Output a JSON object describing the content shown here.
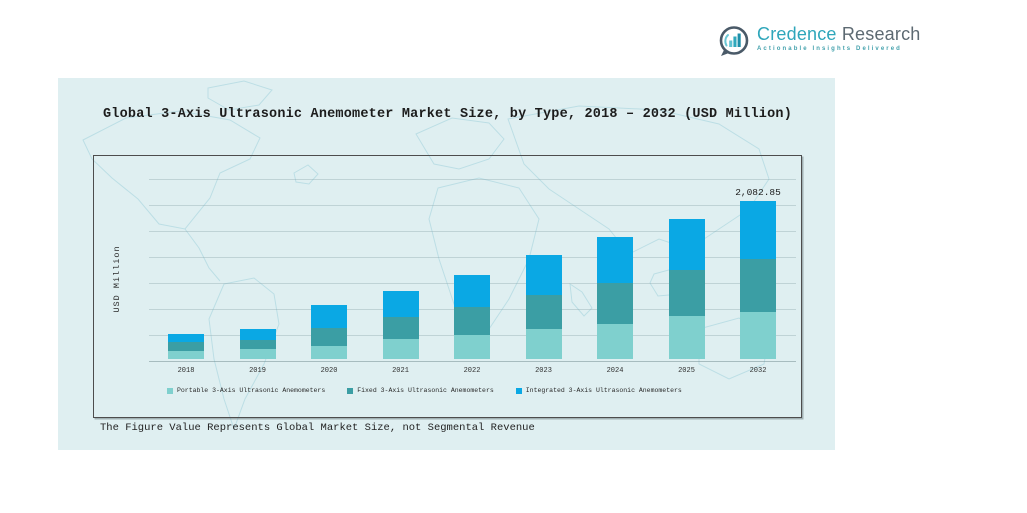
{
  "logo": {
    "brand_primary": "Credence",
    "brand_secondary": "Research",
    "tagline": "Actionable Insights Delivered",
    "icon": "bar-chart-bubble-icon",
    "colors": {
      "primary": "#2ea6ba",
      "secondary": "#5d6a72"
    }
  },
  "card": {
    "background": "#dfeff1",
    "footnote": "The Figure Value Represents Global Market Size, not Segmental Revenue"
  },
  "chart_data": {
    "type": "bar",
    "stacked": true,
    "title": "Global 3-Axis Ultrasonic Anemometer Market Size, by Type, 2018 – 2032 (USD Million)",
    "xlabel": "",
    "ylabel": "USD Million",
    "categories": [
      "2018",
      "2019",
      "2020",
      "2021",
      "2022",
      "2023",
      "2024",
      "2025",
      "2032"
    ],
    "series": [
      {
        "name": "Portable 3-Axis Ultrasonic Anemometers",
        "color": "#7fd0ce",
        "values": [
          107,
          128,
          176,
          261,
          322,
          396,
          462,
          564,
          625
        ]
      },
      {
        "name": "Fixed 3-Axis Ultrasonic Anemometers",
        "color": "#3b9ea4",
        "values": [
          116,
          122,
          229,
          288,
          366,
          450,
          541,
          612,
          696
        ]
      },
      {
        "name": "Integrated 3-Axis Ultrasonic Anemometers",
        "color": "#0aa8e4",
        "values": [
          107,
          145,
          300,
          351,
          422,
          529,
          602,
          674,
          761.85
        ]
      }
    ],
    "totals": [
      330,
      395,
      705,
      900,
      1110,
      1375,
      1605,
      1850,
      2082.85
    ],
    "annotations": [
      {
        "category": "2032",
        "text": "2,082.85"
      }
    ],
    "ylim": [
      0,
      2300
    ],
    "grid": true,
    "legend_position": "bottom"
  }
}
